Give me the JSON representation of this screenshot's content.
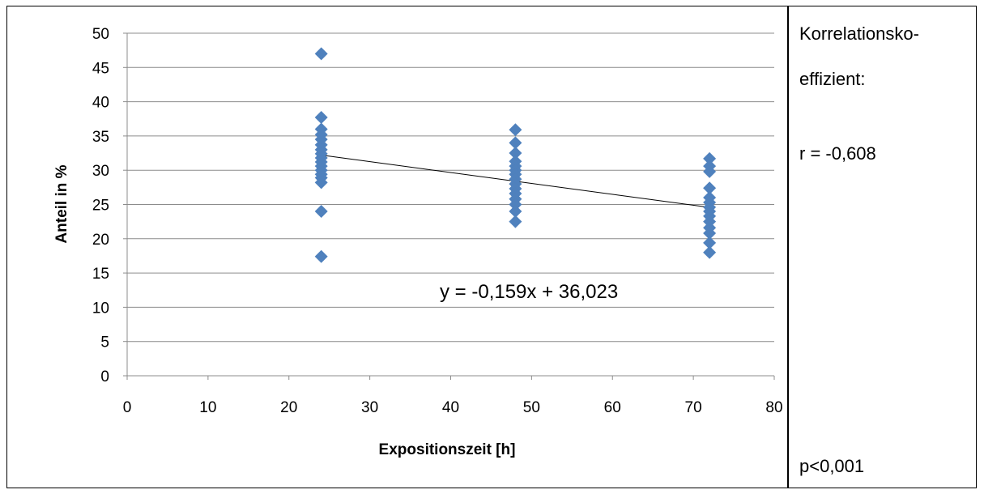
{
  "side_panel": {
    "corr_line1": "Korrelationsko-",
    "corr_line2": "effizient:",
    "r_value": "r = -0,608",
    "p_value": "p<0,001"
  },
  "chart_data": {
    "type": "scatter",
    "xlabel": "Expositionszeit [h]",
    "ylabel": "Anteil in %",
    "xlim": [
      0,
      80
    ],
    "ylim": [
      0,
      50
    ],
    "xticks": [
      0,
      10,
      20,
      30,
      40,
      50,
      60,
      70,
      80
    ],
    "yticks": [
      0,
      5,
      10,
      15,
      20,
      25,
      30,
      35,
      40,
      45,
      50
    ],
    "grid": "horizontal",
    "marker_color": "#4F81BD",
    "trendline_color": "#000000",
    "series": [
      {
        "points": [
          [
            24,
            47
          ],
          [
            24,
            37.7
          ],
          [
            24,
            36
          ],
          [
            24,
            35.2
          ],
          [
            24,
            34.5
          ],
          [
            24,
            33.7
          ],
          [
            24,
            33
          ],
          [
            24,
            32.4
          ],
          [
            24,
            31.8
          ],
          [
            24,
            31.2
          ],
          [
            24,
            30.6
          ],
          [
            24,
            30
          ],
          [
            24,
            29.4
          ],
          [
            24,
            28.9
          ],
          [
            24,
            28.2
          ],
          [
            24,
            24
          ],
          [
            24,
            17.4
          ],
          [
            48,
            35.9
          ],
          [
            48,
            34
          ],
          [
            48,
            32.5
          ],
          [
            48,
            31.3
          ],
          [
            48,
            30.6
          ],
          [
            48,
            30
          ],
          [
            48,
            29.4
          ],
          [
            48,
            28.7
          ],
          [
            48,
            28
          ],
          [
            48,
            27.3
          ],
          [
            48,
            26.6
          ],
          [
            48,
            25.8
          ],
          [
            48,
            25
          ],
          [
            48,
            24
          ],
          [
            48,
            22.5
          ],
          [
            72,
            31.7
          ],
          [
            72,
            30.6
          ],
          [
            72,
            29.8
          ],
          [
            72,
            27.4
          ],
          [
            72,
            26
          ],
          [
            72,
            25.3
          ],
          [
            72,
            24.6
          ],
          [
            72,
            24
          ],
          [
            72,
            23.3
          ],
          [
            72,
            22.5
          ],
          [
            72,
            21.6
          ],
          [
            72,
            20.8
          ],
          [
            72,
            19.4
          ],
          [
            72,
            18
          ]
        ]
      }
    ],
    "trendline": {
      "equation": "y = -0,159x + 36,023",
      "slope": -0.159,
      "intercept": 36.023,
      "x_range": [
        24,
        72
      ]
    }
  }
}
